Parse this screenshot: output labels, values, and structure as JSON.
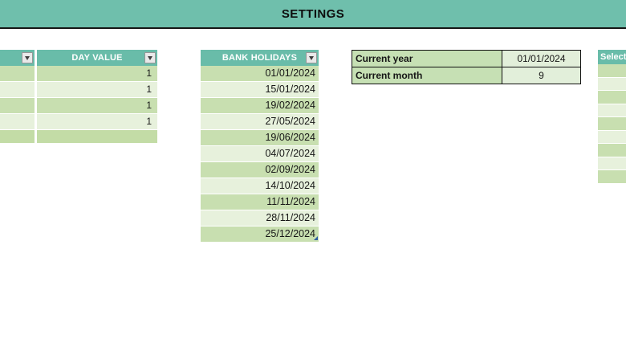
{
  "banner": {
    "title": "SETTINGS"
  },
  "left_table": {
    "day_value_header": "DAY VALUE",
    "rows": [
      {
        "day_value": "1"
      },
      {
        "day_value": "1"
      },
      {
        "day_value": "1"
      },
      {
        "day_value": "1"
      }
    ],
    "footer_row_value": ""
  },
  "bank_holidays_table": {
    "header": "BANK HOLIDAYS",
    "dates": [
      "01/01/2024",
      "15/01/2024",
      "19/02/2024",
      "27/05/2024",
      "19/06/2024",
      "04/07/2024",
      "02/09/2024",
      "14/10/2024",
      "11/11/2024",
      "28/11/2024",
      "25/12/2024"
    ]
  },
  "current_settings_table": {
    "rows": [
      {
        "label": "Current year",
        "value": "01/01/2024"
      },
      {
        "label": "Current month",
        "value": "9"
      }
    ]
  },
  "select_table": {
    "header_partial": "Select"
  },
  "icons": {
    "filter_dropdown": "filter-dropdown-icon",
    "table_resize": "table-resize-handle-icon"
  },
  "colors": {
    "teal_banner": "#6FBFAC",
    "teal_header": "#69BCA9",
    "band_dark": "#C8DFB0",
    "band_light": "#E7F1DC",
    "footer_band": "#C3DCA6",
    "label_cell": "#C6E0B4",
    "value_cell": "#E2EFDA",
    "resize_handle_blue": "#2E5FA3"
  }
}
